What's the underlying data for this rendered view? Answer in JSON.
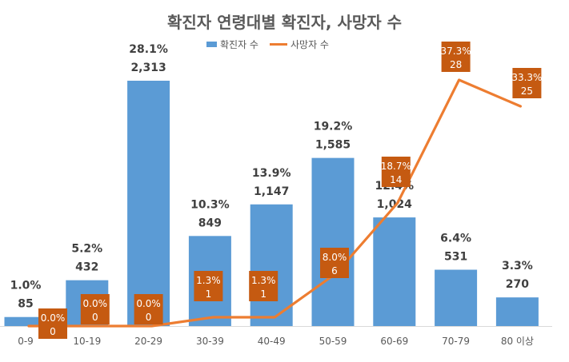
{
  "chart_data": {
    "type": "bar+line",
    "title": "확진자 연령대별 확진자, 사망자 수",
    "categories": [
      "0-9",
      "10-19",
      "20-29",
      "30-39",
      "40-49",
      "50-59",
      "60-69",
      "70-79",
      "80 이상"
    ],
    "series": [
      {
        "name": "확진자 수",
        "type": "bar",
        "color": "#5b9bd5",
        "values": [
          85,
          432,
          2313,
          849,
          1147,
          1585,
          1024,
          531,
          270
        ],
        "percent_labels": [
          "1.0%",
          "5.2%",
          "28.1%",
          "10.3%",
          "13.9%",
          "19.2%",
          "12.4%",
          "6.4%",
          "3.3%"
        ],
        "value_labels": [
          "85",
          "432",
          "2,313",
          "849",
          "1,147",
          "1,585",
          "1,024",
          "531",
          "270"
        ]
      },
      {
        "name": "사망자 수",
        "type": "line",
        "color": "#ed7d31",
        "label_box_color": "#c55a11",
        "values": [
          0,
          0,
          0,
          1,
          1,
          6,
          14,
          28,
          25
        ],
        "percent_labels": [
          "0.0%",
          "0.0%",
          "0.0%",
          "1.3%",
          "1.3%",
          "8.0%",
          "18.7%",
          "37.3%",
          "33.3%"
        ],
        "value_labels": [
          "0",
          "0",
          "0",
          "1",
          "1",
          "6",
          "14",
          "28",
          "25"
        ]
      }
    ],
    "ylim_primary": [
      0,
      2500
    ],
    "ylim_secondary": [
      0,
      30
    ],
    "grid": false,
    "legend": "top-center"
  }
}
